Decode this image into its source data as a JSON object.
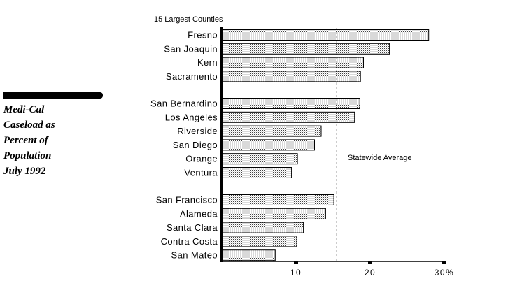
{
  "side_title": "Medi-Cal\nCaseload as\nPercent of\nPopulation\nJuly 1992",
  "chart_data": {
    "type": "bar",
    "orientation": "horizontal",
    "subtitle": "15 Largest Counties",
    "groups": [
      {
        "categories": [
          "Fresno",
          "San Joaquin",
          "Kern",
          "Sacramento"
        ],
        "values": [
          27.9,
          22.6,
          19.1,
          18.7
        ]
      },
      {
        "categories": [
          "San Bernardino",
          "Los Angeles",
          "Riverside",
          "San Diego",
          "Orange",
          "Ventura"
        ],
        "values": [
          18.6,
          17.9,
          13.4,
          12.5,
          10.2,
          9.4
        ]
      },
      {
        "categories": [
          "San Francisco",
          "Alameda",
          "Santa Clara",
          "Contra Costa",
          "San Mateo"
        ],
        "values": [
          15.1,
          14.0,
          11.0,
          10.1,
          7.2
        ]
      }
    ],
    "xlim": [
      0,
      30
    ],
    "xticks": [
      10,
      20,
      30
    ],
    "xtick_labels": [
      "10",
      "20",
      "30%"
    ],
    "reference_line": {
      "label": "Statewide Average",
      "value": 15.5,
      "style": "dashed"
    },
    "bar_fill": "#c8c8c8",
    "bar_outline": "#000000",
    "grid": false
  }
}
